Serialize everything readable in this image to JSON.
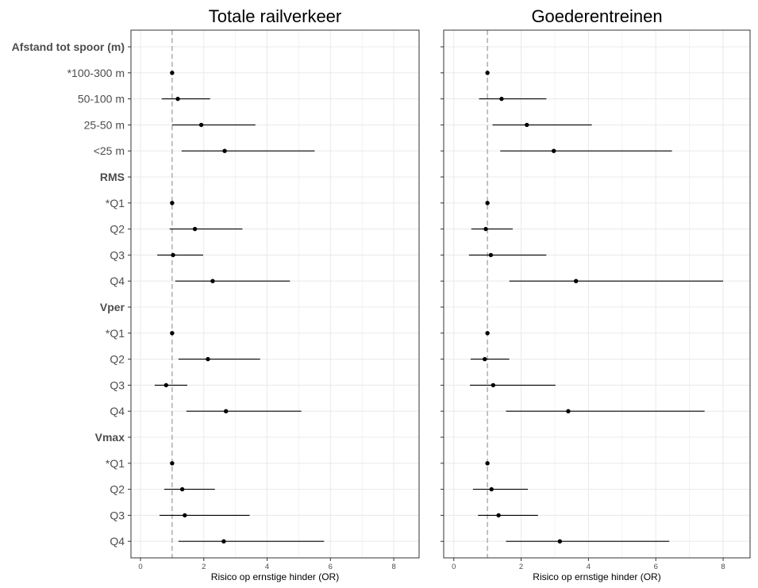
{
  "chart_data": {
    "type": "scatter",
    "subtype": "forest-plot",
    "xlabel": "Risico op ernstige hinder (OR)",
    "xlim": [
      -0.3,
      8.8
    ],
    "xticks": [
      0,
      2,
      4,
      6,
      8
    ],
    "reference_line": 1,
    "grid": true,
    "legend": "none",
    "colors": {
      "point": "#000000",
      "ci": "#000000",
      "reference": "#b3b3b3",
      "grid": "#ebebeb",
      "label": "#4d4d4d",
      "group_label": "#4d4d4d"
    },
    "rows": [
      {
        "label": "Afstand tot spoor (m)",
        "header": true
      },
      {
        "label": "*100-300 m"
      },
      {
        "label": "50-100 m"
      },
      {
        "label": "25-50 m"
      },
      {
        "label": "<25 m"
      },
      {
        "label": "RMS",
        "header": true
      },
      {
        "label": "*Q1"
      },
      {
        "label": "Q2"
      },
      {
        "label": "Q3"
      },
      {
        "label": "Q4"
      },
      {
        "label": "Vper",
        "header": true
      },
      {
        "label": "*Q1"
      },
      {
        "label": "Q2"
      },
      {
        "label": "Q3"
      },
      {
        "label": "Q4"
      },
      {
        "label": "Vmax",
        "header": true
      },
      {
        "label": "*Q1"
      },
      {
        "label": "Q2"
      },
      {
        "label": "Q3"
      },
      {
        "label": "Q4"
      }
    ],
    "panels": [
      {
        "title": "Totale railverkeer",
        "estimates": [
          null,
          [
            1.0,
            1.0,
            1.0
          ],
          [
            1.18,
            0.67,
            2.2
          ],
          [
            1.92,
            1.0,
            3.63
          ],
          [
            2.66,
            1.3,
            5.5
          ],
          null,
          [
            1.0,
            1.0,
            1.0
          ],
          [
            1.72,
            0.92,
            3.22
          ],
          [
            1.03,
            0.53,
            1.98
          ],
          [
            2.28,
            1.1,
            4.72
          ],
          null,
          [
            1.0,
            1.0,
            1.0
          ],
          [
            2.13,
            1.2,
            3.78
          ],
          [
            0.81,
            0.45,
            1.48
          ],
          [
            2.7,
            1.45,
            5.08
          ],
          null,
          [
            1.0,
            1.0,
            1.0
          ],
          [
            1.32,
            0.75,
            2.35
          ],
          [
            1.4,
            0.6,
            3.45
          ],
          [
            2.63,
            1.2,
            5.8
          ]
        ]
      },
      {
        "title": "Goederentreinen",
        "estimates": [
          null,
          [
            1.0,
            1.0,
            1.0
          ],
          [
            1.42,
            0.75,
            2.75
          ],
          [
            2.17,
            1.15,
            4.1
          ],
          [
            2.97,
            1.38,
            6.48
          ],
          null,
          [
            1.0,
            1.0,
            1.0
          ],
          [
            0.95,
            0.52,
            1.75
          ],
          [
            1.1,
            0.45,
            2.75
          ],
          [
            3.63,
            1.65,
            8.0
          ],
          null,
          [
            1.0,
            1.0,
            1.0
          ],
          [
            0.92,
            0.5,
            1.65
          ],
          [
            1.17,
            0.48,
            3.02
          ],
          [
            3.4,
            1.55,
            7.45
          ],
          null,
          [
            1.0,
            1.0,
            1.0
          ],
          [
            1.12,
            0.57,
            2.2
          ],
          [
            1.33,
            0.72,
            2.5
          ],
          [
            3.15,
            1.55,
            6.4
          ]
        ]
      }
    ]
  }
}
